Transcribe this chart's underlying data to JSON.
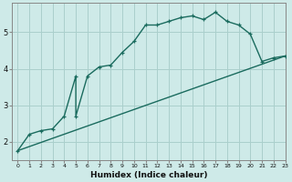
{
  "xlabel": "Humidex (Indice chaleur)",
  "bg_color": "#ceeae8",
  "line_color": "#1a6b5e",
  "grid_color": "#aacfcc",
  "curve1_x": [
    0,
    1,
    2,
    3,
    4,
    5,
    5,
    6,
    7,
    8,
    9,
    10,
    11,
    12,
    13,
    14,
    15,
    16,
    17,
    18,
    19,
    20,
    21,
    22,
    23
  ],
  "curve1_y": [
    1.75,
    2.2,
    2.3,
    2.35,
    2.7,
    3.8,
    2.7,
    3.8,
    4.05,
    4.1,
    4.45,
    4.75,
    5.2,
    5.2,
    5.3,
    5.4,
    5.45,
    5.35,
    5.55,
    5.3,
    5.2,
    4.95,
    4.2,
    4.3,
    4.35
  ],
  "curve2_x": [
    0,
    23
  ],
  "curve2_y": [
    1.75,
    4.35
  ],
  "ylim": [
    1.5,
    5.8
  ],
  "xlim": [
    -0.5,
    23
  ],
  "yticks": [
    2,
    3,
    4,
    5
  ],
  "xticks": [
    0,
    1,
    2,
    3,
    4,
    5,
    6,
    7,
    8,
    9,
    10,
    11,
    12,
    13,
    14,
    15,
    16,
    17,
    18,
    19,
    20,
    21,
    22,
    23
  ]
}
